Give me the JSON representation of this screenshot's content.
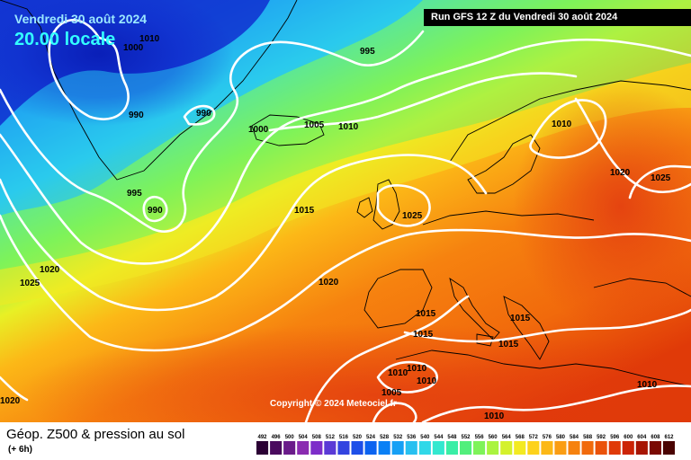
{
  "header": {
    "date": "Vendredi 30 août 2024",
    "time": "20.00 locale",
    "run": "Run GFS 12 Z du Vendredi 30 août 2024"
  },
  "copyright": "Copyright © 2024 Meteociel.fr",
  "footer": {
    "title": "Géop. Z500 & pression au sol",
    "subtitle": "(+ 6h)"
  },
  "colors": {
    "contour_line": "#ffffff",
    "coastline": "#000000"
  },
  "isobar_labels": [
    {
      "id": "label-1000-greenland",
      "text": "1000"
    },
    {
      "id": "label-1010-greenland",
      "text": "1010"
    },
    {
      "id": "label-995-north",
      "text": "995"
    },
    {
      "id": "label-990-greenland-a",
      "text": "990"
    },
    {
      "id": "label-990-greenland-b",
      "text": "990"
    },
    {
      "id": "label-1000-iceland",
      "text": "1000"
    },
    {
      "id": "label-1005-iceland",
      "text": "1005"
    },
    {
      "id": "label-1010-iceland",
      "text": "1010"
    },
    {
      "id": "label-1010-scandinavia",
      "text": "1010"
    },
    {
      "id": "label-995-atlantic",
      "text": "995"
    },
    {
      "id": "label-990-atlantic",
      "text": "990"
    },
    {
      "id": "label-1015-atlantic",
      "text": "1015"
    },
    {
      "id": "label-1025-britain",
      "text": "1025"
    },
    {
      "id": "label-1020-russia",
      "text": "1020"
    },
    {
      "id": "label-1025-russia",
      "text": "1025"
    },
    {
      "id": "label-1020-west",
      "text": "1020"
    },
    {
      "id": "label-1025-west",
      "text": "1025"
    },
    {
      "id": "label-1020-atlantic",
      "text": "1020"
    },
    {
      "id": "label-1015-iberia-a",
      "text": "1015"
    },
    {
      "id": "label-1015-iberia-b",
      "text": "1015"
    },
    {
      "id": "label-1015-balkans",
      "text": "1015"
    },
    {
      "id": "label-1015-greece",
      "text": "1015"
    },
    {
      "id": "label-1010-spain-a",
      "text": "1010"
    },
    {
      "id": "label-1010-spain-b",
      "text": "1010"
    },
    {
      "id": "label-1010-spain-c",
      "text": "1010"
    },
    {
      "id": "label-1005-africa",
      "text": "1005"
    },
    {
      "id": "label-1010-africa",
      "text": "1010"
    },
    {
      "id": "label-1010-east",
      "text": "1010"
    },
    {
      "id": "label-1020-southwest",
      "text": "1020"
    }
  ],
  "scale": {
    "ticks": [
      "492",
      "496",
      "500",
      "504",
      "508",
      "512",
      "516",
      "520",
      "524",
      "528",
      "532",
      "536",
      "540",
      "544",
      "548",
      "552",
      "556",
      "560",
      "564",
      "568",
      "572",
      "576",
      "580",
      "584",
      "588",
      "592",
      "596",
      "600",
      "604",
      "608",
      "612"
    ],
    "colors": [
      "#2b0034",
      "#4a0a5e",
      "#6a1b8a",
      "#8a2bb0",
      "#7d2dc9",
      "#5a3ad6",
      "#3344e0",
      "#1d4fe8",
      "#0a63f0",
      "#0a80f5",
      "#15a0f5",
      "#27c0f0",
      "#30d8e8",
      "#33e8cf",
      "#39eea6",
      "#52ef7c",
      "#7ef35a",
      "#aaf440",
      "#d4f12c",
      "#f3ea22",
      "#fdd21b",
      "#fcb817",
      "#fa9d13",
      "#f6820f",
      "#f16a0c",
      "#ea520a",
      "#e03a08",
      "#cc2406",
      "#a71504",
      "#7a0a03",
      "#4a0302"
    ]
  }
}
